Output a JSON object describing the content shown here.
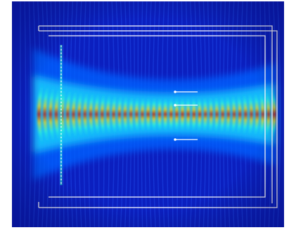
{
  "figure": {
    "kind": "simulated-wave-field-plot",
    "colormap": [
      "#000c8c",
      "#0018c8",
      "#0050ff",
      "#00b4ff",
      "#30ffd0",
      "#c8ff38",
      "#ffd000",
      "#ff5000",
      "#c80000"
    ],
    "background_color": "#0b1fbf",
    "boundary_line_color": "#ffffff",
    "wavefront_count": 42,
    "beam_waist_position": 0.58,
    "source_line": true,
    "measurement_markers": 3
  }
}
